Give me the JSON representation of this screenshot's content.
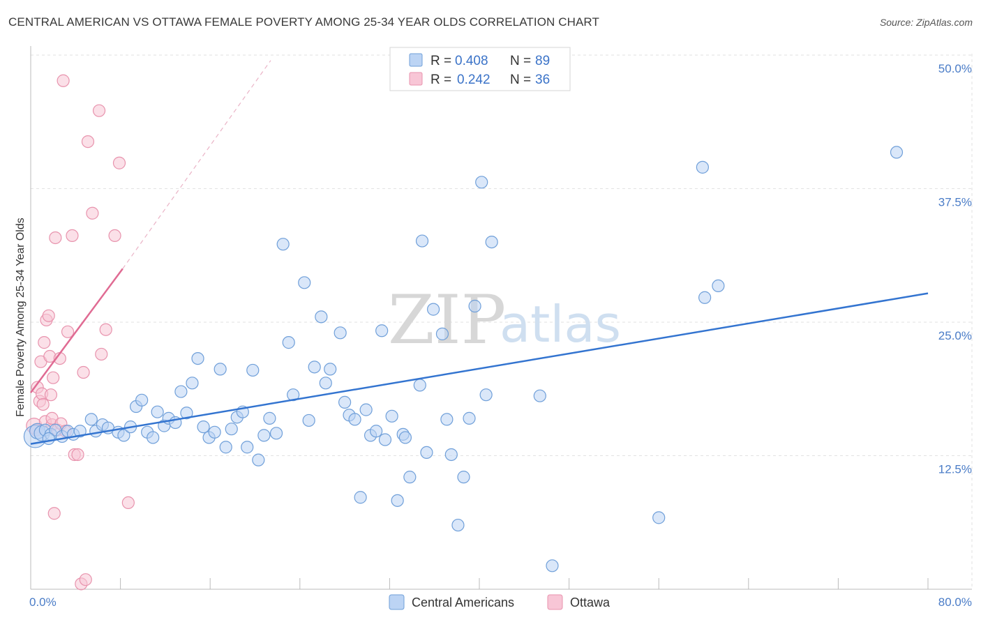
{
  "title": "CENTRAL AMERICAN VS OTTAWA FEMALE POVERTY AMONG 25-34 YEAR OLDS CORRELATION CHART",
  "source": "Source: ZipAtlas.com",
  "watermark": {
    "zip": "ZIP",
    "atlas": "atlas"
  },
  "colors": {
    "blue_fill": "#bcd4f4",
    "blue_stroke": "#6f9fd9",
    "blue_line": "#3374d0",
    "pink_fill": "#f8c6d6",
    "pink_stroke": "#e893ad",
    "pink_line": "#e06b93",
    "tick_text": "#4a7cc7",
    "grid": "#e2e2e2"
  },
  "legend": {
    "r_label": "R =",
    "n_label": "N =",
    "rows": [
      {
        "r": "0.408",
        "n": "89"
      },
      {
        "r": "0.242",
        "n": "36"
      }
    ]
  },
  "chart_data": {
    "type": "scatter",
    "xlabel": "",
    "ylabel": "Female Poverty Among 25-34 Year Olds",
    "xlim": [
      0,
      80
    ],
    "ylim": [
      0,
      50
    ],
    "x_tick_labels": [
      {
        "value": 0,
        "label": "0.0%"
      },
      {
        "value": 80,
        "label": "80.0%"
      }
    ],
    "y_tick_labels": [
      {
        "value": 12.5,
        "label": "12.5%"
      },
      {
        "value": 25,
        "label": "25.0%"
      },
      {
        "value": 37.5,
        "label": "37.5%"
      },
      {
        "value": 50,
        "label": "50.0%"
      }
    ],
    "grid": true,
    "legend_position": "top-center",
    "series": [
      {
        "name": "Central Americans",
        "color": "#bcd4f4",
        "trend": {
          "x": [
            0,
            80
          ],
          "y": [
            13.6,
            27.7
          ]
        },
        "points": [
          [
            0.4,
            14.3,
            3
          ],
          [
            0.6,
            14.8,
            2
          ],
          [
            1.0,
            14.6,
            2
          ],
          [
            1.3,
            14.9,
            1
          ],
          [
            1.8,
            14.5,
            1
          ],
          [
            2.2,
            14.9,
            1
          ],
          [
            2.8,
            14.3,
            1
          ],
          [
            3.3,
            14.8,
            1
          ],
          [
            3.8,
            14.5,
            1
          ],
          [
            4.4,
            14.8,
            1
          ],
          [
            5.4,
            15.9,
            1
          ],
          [
            5.8,
            14.8,
            1
          ],
          [
            6.4,
            15.4,
            1
          ],
          [
            6.9,
            15.1,
            1
          ],
          [
            7.8,
            14.7,
            1
          ],
          [
            8.3,
            14.4,
            1
          ],
          [
            8.9,
            15.2,
            1
          ],
          [
            9.4,
            17.1,
            1
          ],
          [
            9.9,
            17.7,
            1
          ],
          [
            10.4,
            14.7,
            1
          ],
          [
            10.9,
            14.2,
            1
          ],
          [
            11.3,
            16.6,
            1
          ],
          [
            11.9,
            15.3,
            1
          ],
          [
            12.3,
            16.0,
            1
          ],
          [
            12.9,
            15.6,
            1
          ],
          [
            13.4,
            18.5,
            1
          ],
          [
            13.9,
            16.5,
            1
          ],
          [
            14.4,
            19.3,
            1
          ],
          [
            14.9,
            21.6,
            1
          ],
          [
            15.4,
            15.2,
            1
          ],
          [
            15.9,
            14.2,
            1
          ],
          [
            16.4,
            14.7,
            1
          ],
          [
            16.9,
            20.6,
            1
          ],
          [
            17.4,
            13.3,
            1
          ],
          [
            17.9,
            15.0,
            1
          ],
          [
            18.4,
            16.1,
            1
          ],
          [
            18.9,
            16.6,
            1
          ],
          [
            19.3,
            13.3,
            1
          ],
          [
            19.8,
            20.5,
            1
          ],
          [
            20.3,
            12.1,
            1
          ],
          [
            20.8,
            14.4,
            1
          ],
          [
            21.3,
            16.0,
            1
          ],
          [
            21.9,
            14.6,
            1
          ],
          [
            22.5,
            32.3,
            1
          ],
          [
            23.0,
            23.1,
            1
          ],
          [
            23.4,
            18.2,
            1
          ],
          [
            24.4,
            28.7,
            1
          ],
          [
            24.8,
            15.8,
            1
          ],
          [
            25.3,
            20.8,
            1
          ],
          [
            25.9,
            25.5,
            1
          ],
          [
            26.3,
            19.3,
            1
          ],
          [
            26.7,
            20.6,
            1
          ],
          [
            27.6,
            24.0,
            1
          ],
          [
            28.0,
            17.5,
            1
          ],
          [
            28.4,
            16.3,
            1
          ],
          [
            28.9,
            15.9,
            1
          ],
          [
            29.4,
            8.6,
            1
          ],
          [
            29.9,
            16.8,
            1
          ],
          [
            30.3,
            14.4,
            1
          ],
          [
            30.8,
            14.8,
            1
          ],
          [
            31.3,
            24.2,
            1
          ],
          [
            31.6,
            14.0,
            1
          ],
          [
            32.2,
            16.2,
            1
          ],
          [
            32.7,
            8.3,
            1
          ],
          [
            33.2,
            14.5,
            1
          ],
          [
            33.4,
            14.2,
            1
          ],
          [
            33.8,
            10.5,
            1
          ],
          [
            34.7,
            19.1,
            1
          ],
          [
            34.9,
            32.6,
            1
          ],
          [
            35.3,
            12.8,
            1
          ],
          [
            35.9,
            26.2,
            1
          ],
          [
            36.7,
            23.9,
            1
          ],
          [
            37.1,
            15.9,
            1
          ],
          [
            37.5,
            12.6,
            1
          ],
          [
            38.1,
            6.0,
            1
          ],
          [
            38.6,
            10.5,
            1
          ],
          [
            39.1,
            16.0,
            1
          ],
          [
            39.6,
            26.5,
            1
          ],
          [
            40.2,
            38.1,
            1
          ],
          [
            40.6,
            18.2,
            1
          ],
          [
            41.1,
            32.5,
            1
          ],
          [
            45.4,
            18.1,
            1
          ],
          [
            46.5,
            2.2,
            1
          ],
          [
            56.0,
            6.7,
            1
          ],
          [
            59.9,
            39.5,
            1
          ],
          [
            60.1,
            27.3,
            1
          ],
          [
            61.3,
            28.4,
            1
          ],
          [
            77.2,
            40.9,
            1
          ],
          [
            1.6,
            14.1,
            1
          ]
        ]
      },
      {
        "name": "Ottawa",
        "color": "#f8c6d6",
        "trend": {
          "x": [
            0,
            8.2
          ],
          "y": [
            18.4,
            30.0
          ]
        },
        "trend_extension": {
          "x": [
            8.2,
            21.4
          ],
          "y": [
            30.0,
            49.5
          ]
        },
        "points": [
          [
            0.3,
            15.3,
            2
          ],
          [
            0.5,
            14.9,
            1
          ],
          [
            0.6,
            18.9,
            1
          ],
          [
            0.8,
            17.6,
            1
          ],
          [
            0.9,
            21.3,
            1
          ],
          [
            1.0,
            18.3,
            1
          ],
          [
            1.1,
            17.3,
            1
          ],
          [
            1.2,
            23.1,
            1
          ],
          [
            1.3,
            15.7,
            1
          ],
          [
            1.4,
            25.2,
            1
          ],
          [
            1.6,
            25.6,
            1
          ],
          [
            1.7,
            21.8,
            1
          ],
          [
            1.8,
            18.2,
            1
          ],
          [
            1.9,
            15.4,
            1
          ],
          [
            1.9,
            16.0,
            1
          ],
          [
            2.0,
            19.8,
            1
          ],
          [
            2.1,
            7.1,
            1
          ],
          [
            2.2,
            32.9,
            1
          ],
          [
            2.4,
            14.9,
            1
          ],
          [
            2.6,
            21.6,
            1
          ],
          [
            2.7,
            15.5,
            1
          ],
          [
            2.9,
            47.6,
            1
          ],
          [
            3.1,
            14.8,
            1
          ],
          [
            3.3,
            24.1,
            1
          ],
          [
            3.7,
            33.1,
            1
          ],
          [
            3.9,
            12.6,
            1
          ],
          [
            4.2,
            12.6,
            1
          ],
          [
            4.5,
            0.5,
            1
          ],
          [
            4.7,
            20.3,
            1
          ],
          [
            4.9,
            0.9,
            1
          ],
          [
            5.1,
            41.9,
            1
          ],
          [
            5.5,
            35.2,
            1
          ],
          [
            6.1,
            44.8,
            1
          ],
          [
            6.3,
            22.0,
            1
          ],
          [
            6.7,
            24.3,
            1
          ],
          [
            7.5,
            33.1,
            1
          ],
          [
            7.9,
            39.9,
            1
          ],
          [
            8.7,
            8.1,
            1
          ]
        ]
      }
    ]
  }
}
